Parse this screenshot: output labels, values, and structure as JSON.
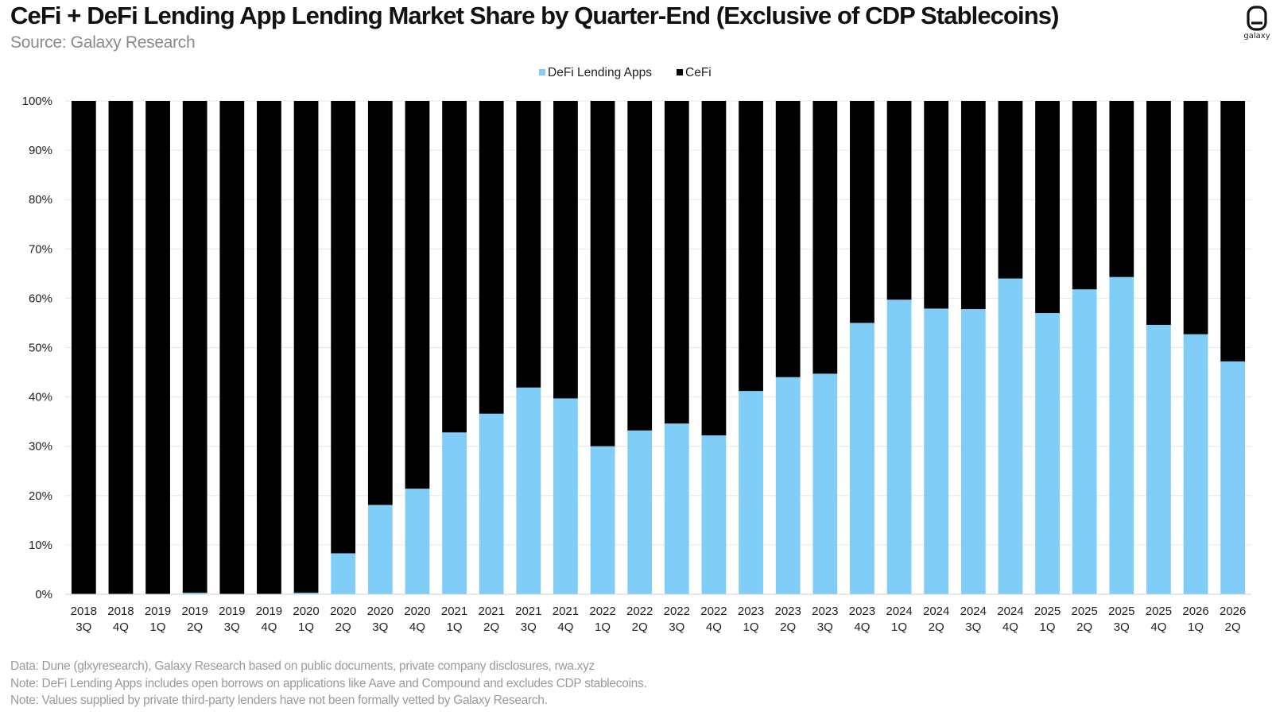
{
  "header": {
    "title": "CeFi + DeFi Lending App Lending Market Share by Quarter-End (Exclusive of CDP Stablecoins)",
    "subtitle": "Source: Galaxy Research",
    "logo_text": "galaxy"
  },
  "footer": {
    "notes": [
      "Data: Dune (glxyresearch), Galaxy Research based on public documents, private company disclosures, rwa.xyz",
      "Note: DeFi Lending Apps includes open borrows on applications like Aave and Compound and excludes CDP stablecoins.",
      "Note: Values supplied by private third-party lenders have not been formally vetted  by Galaxy Research."
    ]
  },
  "colors": {
    "defi": "#80cdf8",
    "cefi": "#000000",
    "grid": "#e6e6e6"
  },
  "chart_data": {
    "type": "bar",
    "stacked": true,
    "title": "CeFi + DeFi Lending App Lending Market Share by Quarter-End (Exclusive of CDP Stablecoins)",
    "categories": [
      [
        "2018",
        "3Q"
      ],
      [
        "2018",
        "4Q"
      ],
      [
        "2019",
        "1Q"
      ],
      [
        "2019",
        "2Q"
      ],
      [
        "2019",
        "3Q"
      ],
      [
        "2019",
        "4Q"
      ],
      [
        "2020",
        "1Q"
      ],
      [
        "2020",
        "2Q"
      ],
      [
        "2020",
        "3Q"
      ],
      [
        "2020",
        "4Q"
      ],
      [
        "2021",
        "1Q"
      ],
      [
        "2021",
        "2Q"
      ],
      [
        "2021",
        "3Q"
      ],
      [
        "2021",
        "4Q"
      ],
      [
        "2022",
        "1Q"
      ],
      [
        "2022",
        "2Q"
      ],
      [
        "2022",
        "3Q"
      ],
      [
        "2022",
        "4Q"
      ],
      [
        "2023",
        "1Q"
      ],
      [
        "2023",
        "2Q"
      ],
      [
        "2023",
        "3Q"
      ],
      [
        "2023",
        "4Q"
      ],
      [
        "2024",
        "1Q"
      ],
      [
        "2024",
        "2Q"
      ],
      [
        "2024",
        "3Q"
      ],
      [
        "2024",
        "4Q"
      ],
      [
        "2025",
        "1Q"
      ],
      [
        "2025",
        "2Q"
      ],
      [
        "2025",
        "3Q"
      ],
      [
        "2025",
        "4Q"
      ],
      [
        "2026",
        "1Q"
      ],
      [
        "2026",
        "2Q"
      ]
    ],
    "series": [
      {
        "name": "DeFi Lending Apps",
        "color": "#80cdf8",
        "values": [
          0,
          0,
          0,
          0.3,
          0,
          0,
          0.3,
          8.3,
          18.1,
          21.4,
          32.8,
          36.6,
          41.9,
          39.7,
          30.0,
          33.2,
          34.6,
          32.2,
          41.2,
          44.0,
          44.7,
          55.0,
          59.7,
          57.9,
          57.8,
          64.0,
          57.0,
          61.8,
          64.3,
          54.6,
          52.7,
          47.2
        ]
      },
      {
        "name": "CeFi",
        "color": "#000000",
        "values": [
          100,
          100,
          100,
          99.7,
          100,
          100,
          99.7,
          91.7,
          81.9,
          78.6,
          67.2,
          63.4,
          58.1,
          60.3,
          70.0,
          66.8,
          65.4,
          67.8,
          58.8,
          56.0,
          55.3,
          45.0,
          40.3,
          42.1,
          42.2,
          36.0,
          43.0,
          38.2,
          35.7,
          45.4,
          47.3,
          52.8
        ]
      }
    ],
    "y_ticks": [
      "0%",
      "10%",
      "20%",
      "30%",
      "40%",
      "50%",
      "60%",
      "70%",
      "80%",
      "90%",
      "100%"
    ],
    "ylim": [
      0,
      100
    ],
    "grid": true,
    "legend": "top-center"
  }
}
